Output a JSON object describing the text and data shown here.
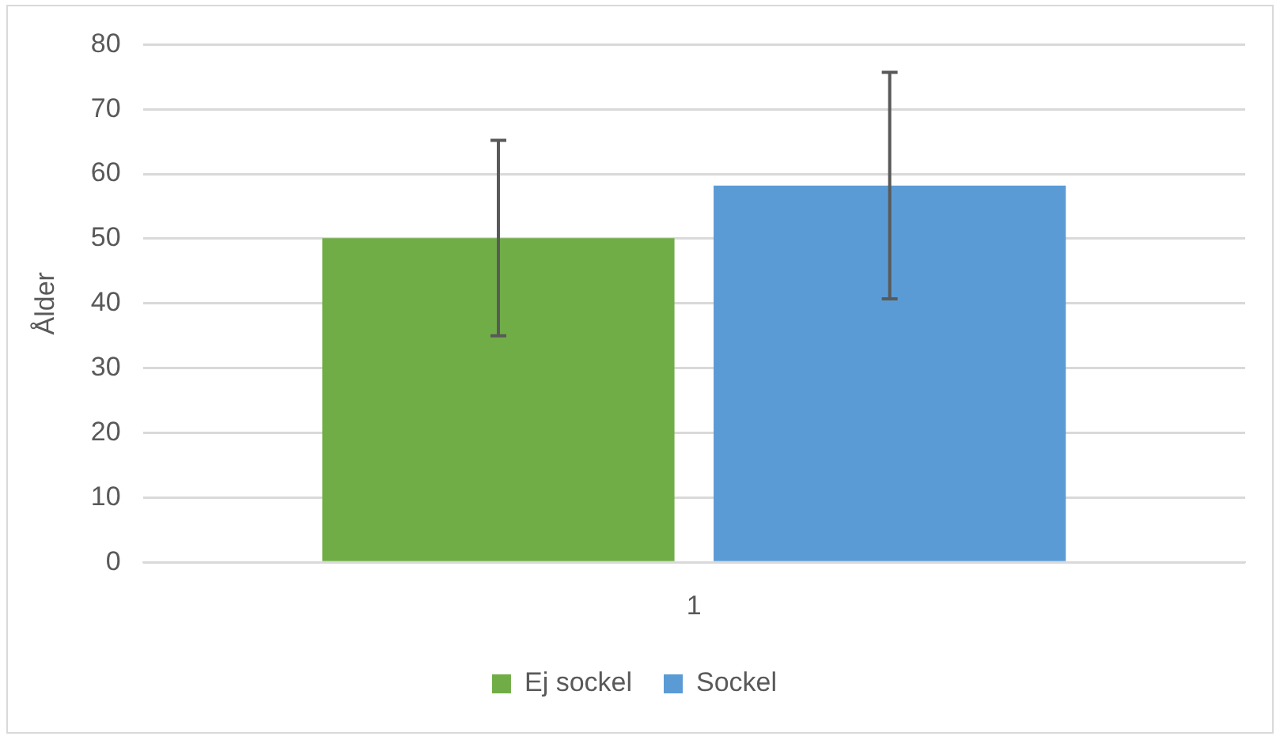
{
  "chart_data": {
    "type": "bar",
    "ylabel": "Ålder",
    "categories": [
      "1"
    ],
    "series": [
      {
        "name": "Ej sockel",
        "color": "#70ad47",
        "values": [
          50.1
        ],
        "errors": [
          15.1
        ]
      },
      {
        "name": "Sockel",
        "color": "#5b9bd5",
        "values": [
          58.2
        ],
        "errors": [
          17.5
        ]
      }
    ],
    "ylim": [
      0,
      80
    ],
    "yticks": [
      0,
      10,
      20,
      30,
      40,
      50,
      60,
      70,
      80
    ],
    "grid": "y",
    "legend": "bottom"
  }
}
